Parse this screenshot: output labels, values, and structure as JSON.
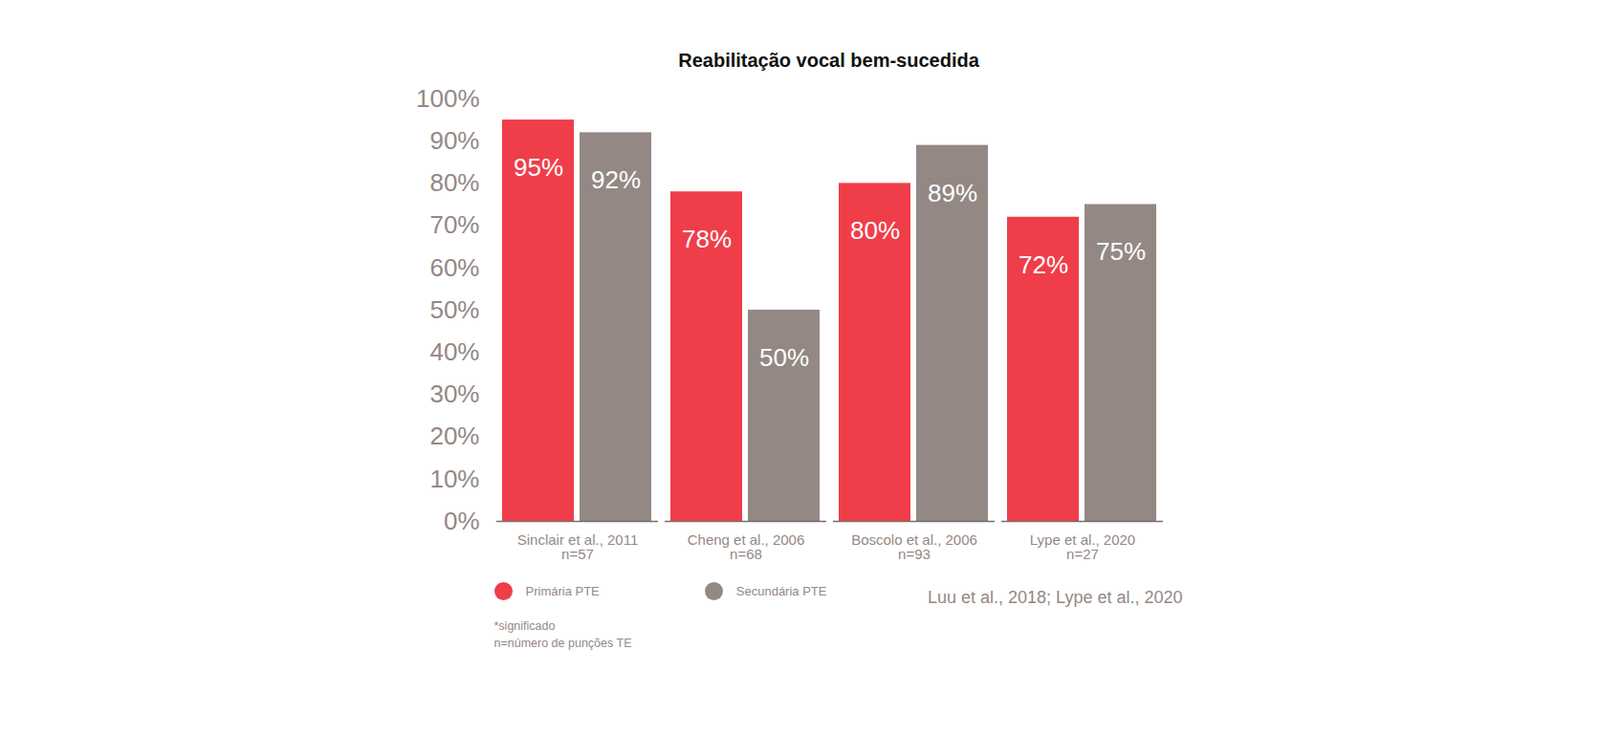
{
  "chart_data": {
    "type": "bar",
    "title": "Reabilitação vocal bem-sucedida",
    "categories": [
      "Sinclair et al., 2011\nn=57",
      "Cheng et al., 2006\nn=68",
      "Boscolo et al., 2006\nn=93",
      "Lype et al., 2020\nn=27"
    ],
    "series": [
      {
        "name": "Primária PTE",
        "color": "#ef3e4a",
        "values": [
          95,
          78,
          80,
          72
        ],
        "value_labels": [
          "95%",
          "78%",
          "80%",
          "72%"
        ]
      },
      {
        "name": "Secundária PTE",
        "color": "#948884",
        "values": [
          92,
          50,
          89,
          75
        ],
        "value_labels": [
          "92%",
          "50%",
          "89%",
          "75%"
        ]
      }
    ],
    "ylim": [
      0,
      100
    ],
    "yticks": [
      {
        "value": 0,
        "label": "0%"
      },
      {
        "value": 10,
        "label": "10%"
      },
      {
        "value": 20,
        "label": "20%"
      },
      {
        "value": 30,
        "label": "30%"
      },
      {
        "value": 40,
        "label": "40%"
      },
      {
        "value": 50,
        "label": "50%"
      },
      {
        "value": 60,
        "label": "60%"
      },
      {
        "value": 70,
        "label": "70%"
      },
      {
        "value": 80,
        "label": "80%"
      },
      {
        "value": 90,
        "label": "90%"
      },
      {
        "value": 100,
        "label": "100%"
      }
    ],
    "grid": false,
    "data_labels": true,
    "legend": "bottom",
    "notes": [
      "*significado",
      "n=número de punções TE"
    ],
    "source": "Luu et al., 2018; Lype et al., 2020"
  }
}
